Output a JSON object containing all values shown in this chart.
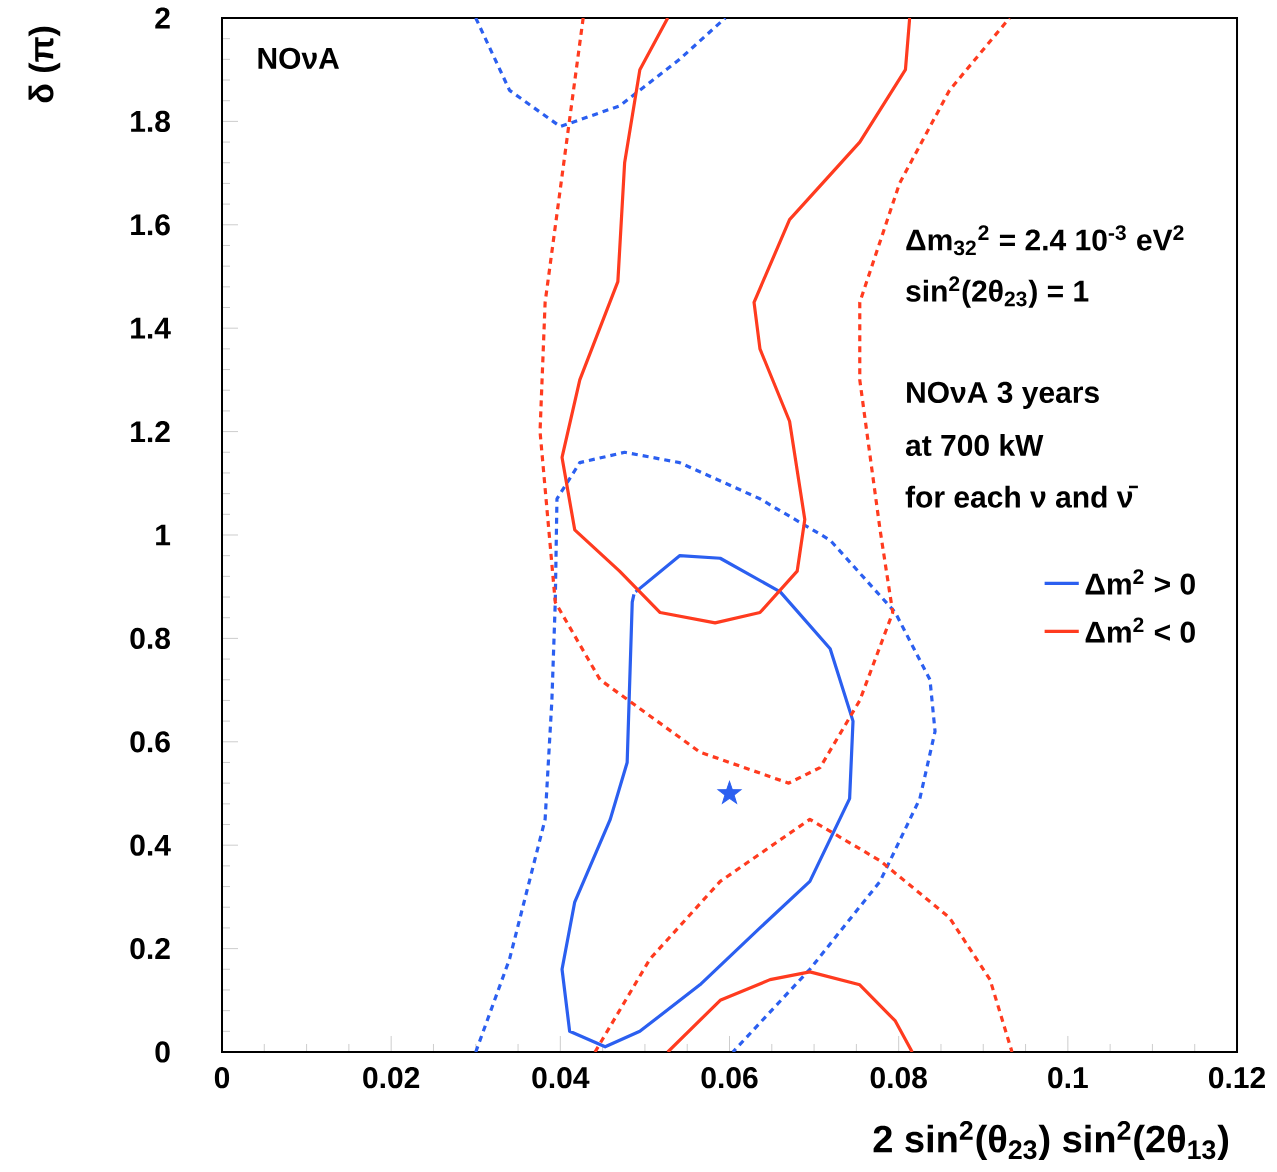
{
  "chart_data": {
    "type": "line",
    "xlabel": "2 sin$^{2}$(θ$_{23}$) sin$^{2}$(2θ$_{13}$)",
    "ylabel": "δ (π)",
    "xlim": [
      0,
      0.12
    ],
    "ylim": [
      0,
      2
    ],
    "xticks": [
      0,
      0.02,
      0.04,
      0.06,
      0.08,
      0.1,
      0.12
    ],
    "yticks": [
      0,
      0.2,
      0.4,
      0.6,
      0.8,
      1,
      1.2,
      1.4,
      1.6,
      1.8,
      2
    ],
    "legend": "right",
    "annotations": [
      "NOνA",
      "Δm$_{32}$$^{2}$ = 2.4 10$^{-3}$ eV$^{2}$",
      "sin$^{2}$(2θ$_{23}$) = 1",
      "NOνA 3 years",
      "at 700 kW",
      "for each ν and ν̄"
    ],
    "series": [
      {
        "color": "#2b5ff0",
        "line_style": "dashed",
        "x": [
          0.03,
          0.034,
          0.0382,
          0.039,
          0.0394,
          0.0396,
          0.0423,
          0.0476,
          0.0541,
          0.0636,
          0.0719,
          0.0796,
          0.0837,
          0.0843,
          0.0825,
          0.0778,
          0.0695,
          0.0604
        ],
        "values": [
          0,
          0.18,
          0.45,
          0.68,
          0.87,
          1.07,
          1.14,
          1.16,
          1.14,
          1.07,
          0.99,
          0.85,
          0.72,
          0.62,
          0.49,
          0.33,
          0.16,
          0
        ]
      },
      {
        "color": "#2b5ff0",
        "line_style": "dashed",
        "x": [
          0.03,
          0.034,
          0.04,
          0.047,
          0.0541,
          0.0595
        ],
        "values": [
          2,
          1.86,
          1.79,
          1.83,
          1.92,
          2
        ]
      },
      {
        "name": "Δm$^{2}$ > 0",
        "color": "#2b5ff0",
        "line_style": "solid",
        "x": [
          0.0489,
          0.0541,
          0.0589,
          0.066,
          0.0719,
          0.0746,
          0.0742,
          0.0695,
          0.0636,
          0.0565,
          0.0494,
          0.0453,
          0.0411,
          0.0402,
          0.0417,
          0.0459,
          0.0479,
          0.0485,
          0.0487
        ],
        "values": [
          0.89,
          0.96,
          0.955,
          0.89,
          0.78,
          0.64,
          0.49,
          0.33,
          0.24,
          0.13,
          0.04,
          0.01,
          0.04,
          0.16,
          0.29,
          0.45,
          0.56,
          0.87,
          0.885
        ]
      },
      {
        "color": "#ff3b1f",
        "line_style": "dashed",
        "x": [
          0.0427,
          0.0382,
          0.0376,
          0.0394,
          0.0447,
          0.0565,
          0.067,
          0.0707,
          0.0754,
          0.0793,
          0.0778,
          0.0754,
          0.0754,
          0.0801,
          0.086,
          0.0931
        ],
        "values": [
          2,
          1.45,
          1.2,
          0.87,
          0.72,
          0.58,
          0.52,
          0.55,
          0.68,
          0.85,
          1.01,
          1.3,
          1.45,
          1.68,
          1.86,
          2
        ]
      },
      {
        "color": "#ff3b1f",
        "line_style": "dashed",
        "x": [
          0.0441,
          0.0506,
          0.0589,
          0.0695,
          0.0778,
          0.086,
          0.0908,
          0.0934
        ],
        "values": [
          0,
          0.18,
          0.33,
          0.45,
          0.37,
          0.26,
          0.14,
          0
        ]
      },
      {
        "name": "Δm$^{2}$ < 0",
        "color": "#ff3b1f",
        "line_style": "solid",
        "x": [
          0.0527,
          0.0494,
          0.0476,
          0.0468,
          0.0423,
          0.0402,
          0.0417,
          0.047,
          0.0518,
          0.0583,
          0.0636,
          0.068,
          0.0689,
          0.0671,
          0.0636,
          0.0629,
          0.0671,
          0.0754,
          0.0808,
          0.0813
        ],
        "values": [
          2,
          1.9,
          1.72,
          1.49,
          1.3,
          1.15,
          1.01,
          0.93,
          0.85,
          0.83,
          0.85,
          0.93,
          1.03,
          1.22,
          1.36,
          1.45,
          1.61,
          1.76,
          1.9,
          2
        ]
      },
      {
        "color": "#ff3b1f",
        "line_style": "solid",
        "x": [
          0.0527,
          0.0589,
          0.0648,
          0.0695,
          0.0754,
          0.0796,
          0.0816
        ],
        "values": [
          0,
          0.1,
          0.14,
          0.155,
          0.13,
          0.06,
          0
        ]
      },
      {
        "type": "scatter",
        "marker": "star",
        "color": "#2b5ff0",
        "x": [
          0.06
        ],
        "values": [
          0.5
        ]
      }
    ]
  }
}
